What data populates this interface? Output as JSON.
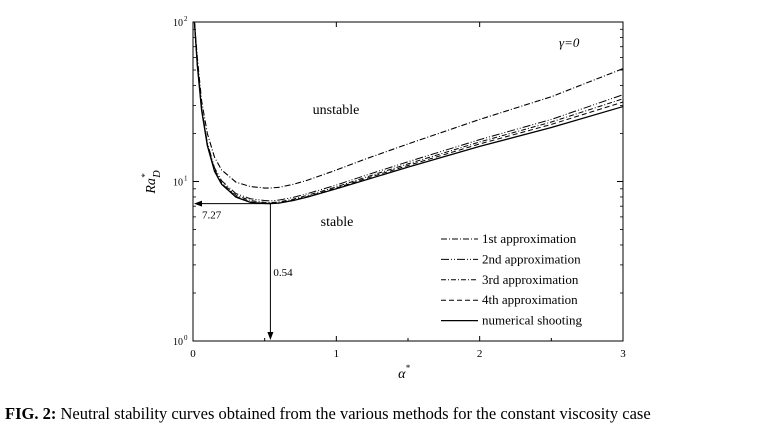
{
  "caption": {
    "label": "FIG. 2:",
    "text": "Neutral stability curves obtained from the various methods for the constant viscosity case"
  },
  "chart_data": {
    "type": "line",
    "xlabel": "α*",
    "ylabel": "Ra*D",
    "xlim": [
      0,
      3
    ],
    "ylim": [
      1,
      100
    ],
    "y_scale": "log",
    "x_ticks": [
      0,
      1,
      2,
      3
    ],
    "y_ticks": [
      {
        "value": 1,
        "label": "10",
        "exp": "0"
      },
      {
        "value": 10,
        "label": "10",
        "exp": "1"
      },
      {
        "value": 100,
        "label": "10",
        "exp": "2"
      }
    ],
    "legend_placement": "bottom-right",
    "annotations": {
      "gamma": "γ=0",
      "unstable": "unstable",
      "stable": "stable",
      "min_ra": "7.27",
      "min_alpha": "0.54"
    },
    "critical_point": {
      "x": 0.54,
      "y": 7.27
    },
    "series": [
      {
        "name": "1st approximation",
        "dash": "6 2 1 2",
        "width": 1.1,
        "x": [
          0.01,
          0.03,
          0.06,
          0.1,
          0.15,
          0.2,
          0.3,
          0.4,
          0.5,
          0.54,
          0.6,
          0.7,
          0.8,
          1.0,
          1.2,
          1.5,
          2.0,
          2.5,
          3.0
        ],
        "y": [
          100,
          60,
          32,
          20,
          14.2,
          11.8,
          9.9,
          9.3,
          9.1,
          9.1,
          9.2,
          9.6,
          10.2,
          11.8,
          13.8,
          17.2,
          24.5,
          34,
          51
        ]
      },
      {
        "name": "2nd approximation",
        "dash": "8 2 1 2 1 2",
        "width": 1.0,
        "x": [
          0.01,
          0.03,
          0.06,
          0.1,
          0.15,
          0.2,
          0.3,
          0.4,
          0.5,
          0.54,
          0.6,
          0.7,
          0.8,
          1.0,
          1.2,
          1.5,
          2.0,
          2.5,
          3.0
        ],
        "y": [
          100,
          56,
          29,
          17.5,
          12.2,
          10.1,
          8.4,
          7.8,
          7.6,
          7.55,
          7.65,
          7.95,
          8.4,
          9.5,
          10.9,
          13.3,
          18.3,
          24.5,
          35
        ]
      },
      {
        "name": "3rd approximation",
        "dash": "5 2 1 2",
        "width": 1.0,
        "x": [
          0.01,
          0.03,
          0.06,
          0.1,
          0.15,
          0.2,
          0.3,
          0.4,
          0.5,
          0.54,
          0.6,
          0.7,
          0.8,
          1.0,
          1.2,
          1.5,
          2.0,
          2.5,
          3.0
        ],
        "y": [
          100,
          55,
          28.5,
          17.1,
          11.9,
          9.8,
          8.2,
          7.6,
          7.4,
          7.38,
          7.45,
          7.75,
          8.2,
          9.25,
          10.6,
          12.9,
          17.7,
          23.6,
          33
        ]
      },
      {
        "name": "4th approximation",
        "dash": "5 3",
        "width": 1.0,
        "x": [
          0.01,
          0.03,
          0.06,
          0.1,
          0.15,
          0.2,
          0.3,
          0.4,
          0.5,
          0.54,
          0.6,
          0.7,
          0.8,
          1.0,
          1.2,
          1.5,
          2.0,
          2.5,
          3.0
        ],
        "y": [
          100,
          54,
          28.2,
          16.9,
          11.7,
          9.7,
          8.05,
          7.45,
          7.3,
          7.29,
          7.35,
          7.65,
          8.05,
          9.1,
          10.4,
          12.6,
          17.2,
          22.8,
          31.5
        ]
      },
      {
        "name": "numerical shooting",
        "dash": "",
        "width": 1.3,
        "x": [
          0.01,
          0.03,
          0.06,
          0.1,
          0.15,
          0.2,
          0.3,
          0.4,
          0.5,
          0.54,
          0.6,
          0.7,
          0.8,
          1.0,
          1.2,
          1.5,
          2.0,
          2.5,
          3.0
        ],
        "y": [
          100,
          53.5,
          28,
          16.8,
          11.6,
          9.6,
          7.98,
          7.4,
          7.28,
          7.27,
          7.32,
          7.6,
          8.0,
          9.0,
          10.2,
          12.3,
          16.6,
          21.8,
          29.5
        ]
      }
    ]
  }
}
